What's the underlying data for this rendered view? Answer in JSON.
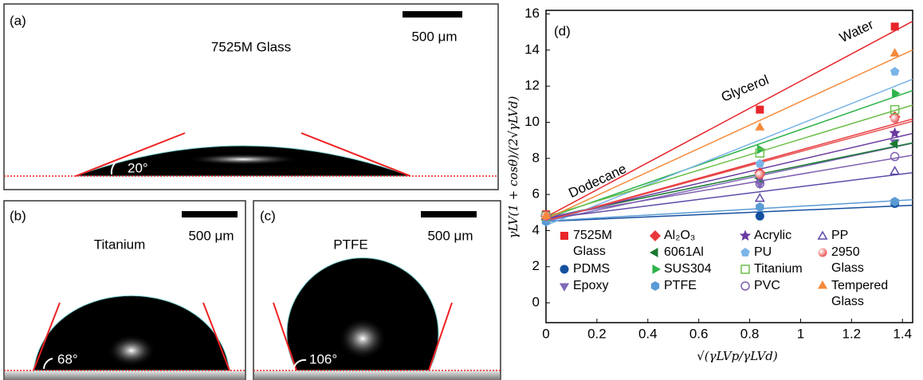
{
  "panels": [
    {
      "label": "(a)",
      "title": "7525M Glass",
      "scale": "500 μm",
      "angle": "20°"
    },
    {
      "label": "(b)",
      "title": "Titanium",
      "scale": "500 μm",
      "angle": "68°"
    },
    {
      "label": "(c)",
      "title": "PTFE",
      "scale": "500 μm",
      "angle": "106°"
    }
  ],
  "chart_data": {
    "type": "scatter",
    "label": "(d)",
    "x_label": "√(γLVp/γLVd)",
    "y_label": "γLV(1 + cosθ)/(2√γLVd)",
    "annotations": [
      "Dodecane",
      "Glycerol",
      "Water"
    ],
    "x": [
      0,
      0.84,
      1.37
    ],
    "xlim": [
      0,
      1.44
    ],
    "ylim": [
      -1.1,
      16.2
    ],
    "xticks": [
      0,
      0.2,
      0.4,
      0.6,
      0.8,
      1,
      1.2,
      1.4
    ],
    "yticks": [
      0,
      2,
      4,
      6,
      8,
      10,
      12,
      14,
      16
    ],
    "series": [
      {
        "name": "7525M Glass",
        "color": "#e8262a",
        "marker": "square",
        "values": [
          4.9,
          10.7,
          15.3
        ]
      },
      {
        "name": "PDMS",
        "color": "#1550a0",
        "marker": "circle",
        "values": [
          4.6,
          4.8,
          5.5
        ]
      },
      {
        "name": "Epoxy",
        "color": "#8069b8",
        "marker": "triangle-down",
        "values": [
          4.7,
          6.6,
          8.9
        ]
      },
      {
        "name": "Al₂O₃",
        "color": "#e8383d",
        "marker": "diamond",
        "values": [
          4.8,
          7.2,
          10.3
        ]
      },
      {
        "name": "6061Al",
        "color": "#1a7a32",
        "marker": "triangle-left",
        "values": [
          4.8,
          6.9,
          8.8
        ]
      },
      {
        "name": "SUS304",
        "color": "#2db34a",
        "marker": "triangle-right",
        "values": [
          4.8,
          8.5,
          11.6
        ]
      },
      {
        "name": "PTFE",
        "color": "#5b9bd5",
        "marker": "hexagon",
        "values": [
          4.5,
          5.3,
          5.6
        ]
      },
      {
        "name": "Acrylic",
        "color": "#6a3aa0",
        "marker": "star",
        "values": [
          4.8,
          7.0,
          9.4
        ]
      },
      {
        "name": "PU",
        "color": "#7ab4e8",
        "marker": "pentagon",
        "values": [
          4.8,
          7.7,
          12.8
        ]
      },
      {
        "name": "Titanium",
        "color": "#6cbf4b",
        "marker": "square-open",
        "values": [
          4.8,
          8.3,
          10.7
        ]
      },
      {
        "name": "PVC",
        "color": "#7f5fb0",
        "marker": "circle-open",
        "values": [
          4.8,
          6.6,
          8.1
        ]
      },
      {
        "name": "PP",
        "color": "#5e4aa8",
        "marker": "triangle-open",
        "values": [
          4.8,
          5.8,
          7.3
        ]
      },
      {
        "name": "2950 Glass",
        "color": "#e84a4a",
        "marker": "sphere",
        "values": [
          4.8,
          7.1,
          10.2
        ]
      },
      {
        "name": "Tempered Glass",
        "color": "#f58a3a",
        "marker": "triangle-up",
        "values": [
          4.8,
          9.7,
          13.8
        ]
      }
    ]
  }
}
